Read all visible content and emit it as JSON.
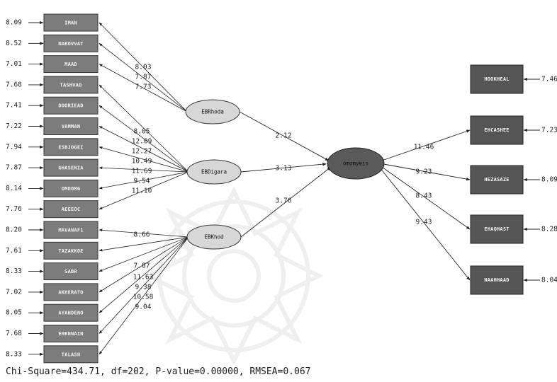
{
  "left_indicators": [
    {
      "label": "IMAN",
      "error": "8.09"
    },
    {
      "label": "NABOVVAT",
      "error": "8.52"
    },
    {
      "label": "MAAD",
      "error": "7.01"
    },
    {
      "label": "TASHVAQ",
      "error": "7.68"
    },
    {
      "label": "DOORIEAD",
      "error": "7.41"
    },
    {
      "label": "VAMMAN",
      "error": "7.22"
    },
    {
      "label": "ESBJOGEI",
      "error": "7.94"
    },
    {
      "label": "GHASENIA",
      "error": "7.87"
    },
    {
      "label": "OMDOMG",
      "error": "8.14"
    },
    {
      "label": "AEEEOC",
      "error": "7.76"
    },
    {
      "label": "MAVANAF1",
      "error": "8.20"
    },
    {
      "label": "TAZAKKOE",
      "error": "7.61"
    },
    {
      "label": "SABR",
      "error": "8.33"
    },
    {
      "label": "AKHERATO",
      "error": "7.02"
    },
    {
      "label": "AYANDENO",
      "error": "8.05"
    },
    {
      "label": "EHRNNAIN",
      "error": "7.68"
    },
    {
      "label": "TALASH",
      "error": "8.33"
    }
  ],
  "latents": [
    {
      "label": "EBRhoda"
    },
    {
      "label": "EBDigara"
    },
    {
      "label": "EBKhod"
    }
  ],
  "central": {
    "label": "omomyeis"
  },
  "right_indicators": [
    {
      "label": "HOOKHEAL",
      "error": "7.46"
    },
    {
      "label": "EHCASHEE",
      "error": "7.23"
    },
    {
      "label": "HEZASAZE",
      "error": "8.09"
    },
    {
      "label": "EHAQHAST",
      "error": "8.28"
    },
    {
      "label": "NAAHHAAD",
      "error": "8.04"
    }
  ],
  "loadings": {
    "EBRhoda": [
      "8.03",
      "7.87",
      "7.73"
    ],
    "EBDigara": [
      "8.05",
      "12.09",
      "12.27",
      "10.49",
      "11.69",
      "9.54",
      "11.10"
    ],
    "EBKhod": [
      "8.66",
      "7.87",
      "11.63",
      "9.38",
      "10.58",
      "9.04"
    ]
  },
  "structural": [
    {
      "from": "EBRhoda",
      "value": "2.12"
    },
    {
      "from": "EBDigara",
      "value": "3.13"
    },
    {
      "from": "EBKhod",
      "value": "3.76"
    }
  ],
  "central_loadings": [
    "11.46",
    "9.23",
    "8.43",
    "9.43"
  ],
  "fit": "Chi-Square=434.71, df=202, P-value=0.00000, RMSEA=0.067"
}
